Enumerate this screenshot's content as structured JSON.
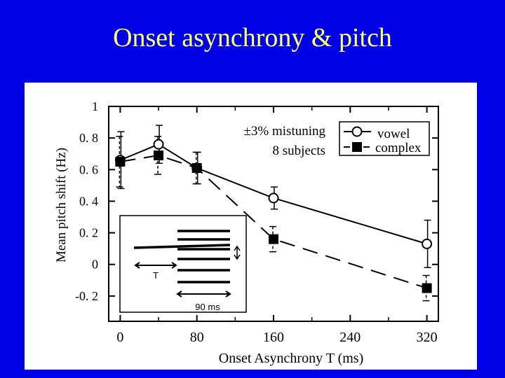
{
  "slide": {
    "title": "Onset asynchrony & pitch"
  },
  "annotations": {
    "mistuning": "±3% mistuning",
    "subjects": "8 subjects"
  },
  "inset": {
    "t_label": "T",
    "duration_label": "90 ms"
  },
  "chart_data": {
    "type": "line",
    "xlabel": "Onset Asynchrony T (ms)",
    "ylabel": "Mean pitch shift (Hz)",
    "xlim": [
      -12,
      332
    ],
    "ylim": [
      -0.36,
      1.0
    ],
    "xticks": [
      0,
      80,
      160,
      240,
      320
    ],
    "xtick_labels": [
      "0",
      "80",
      "160",
      "240",
      "320"
    ],
    "yticks": [
      1.0,
      0.8,
      0.6,
      0.4,
      0.2,
      0.0,
      -0.2
    ],
    "ytick_labels": [
      "1",
      "0. 8",
      "0. 6",
      "0. 4",
      "0. 2",
      "0",
      "-0. 2"
    ],
    "legend_placement": "top-right",
    "series": [
      {
        "name": "vowel",
        "marker": "open-circle",
        "line": "solid",
        "x": [
          0,
          40,
          80,
          160,
          320
        ],
        "y": [
          0.66,
          0.76,
          0.61,
          0.42,
          0.13
        ],
        "err": [
          0.18,
          0.12,
          0.1,
          0.07,
          0.15
        ]
      },
      {
        "name": "complex",
        "marker": "filled-square",
        "line": "dashed",
        "x": [
          0,
          40,
          80,
          160,
          320
        ],
        "y": [
          0.65,
          0.69,
          0.61,
          0.16,
          -0.15
        ],
        "err": [
          0.16,
          0.12,
          0.1,
          0.08,
          0.08
        ]
      }
    ]
  }
}
